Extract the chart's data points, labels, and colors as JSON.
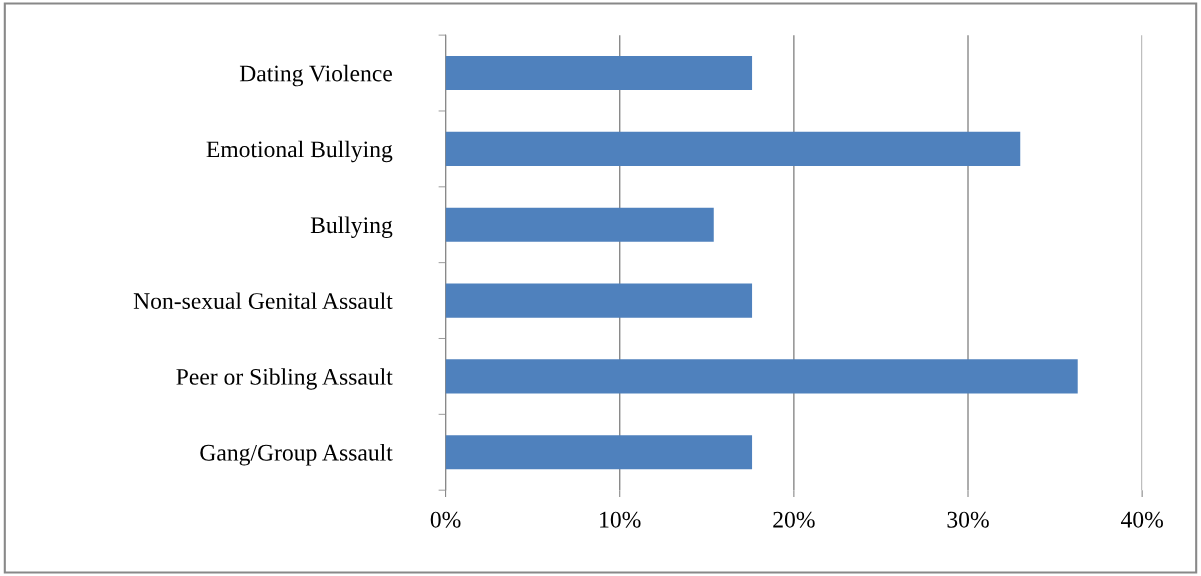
{
  "chart_data": {
    "type": "bar",
    "orientation": "horizontal",
    "categories": [
      "Dating Violence",
      "Emotional Bullying",
      "Bullying",
      "Non-sexual Genital Assault",
      "Peer or Sibling Assault",
      "Gang/Group Assault"
    ],
    "values": [
      17.6,
      33.0,
      15.4,
      17.6,
      36.3,
      17.6
    ],
    "color": "#4f81bd",
    "xlim": [
      0,
      40
    ],
    "xticks": [
      {
        "value": 0,
        "label": "0%"
      },
      {
        "value": 10,
        "label": "10%"
      },
      {
        "value": 20,
        "label": "20%"
      },
      {
        "value": 30,
        "label": "30%"
      },
      {
        "value": 40,
        "label": "40%"
      }
    ],
    "grid": "x",
    "legend": false
  }
}
